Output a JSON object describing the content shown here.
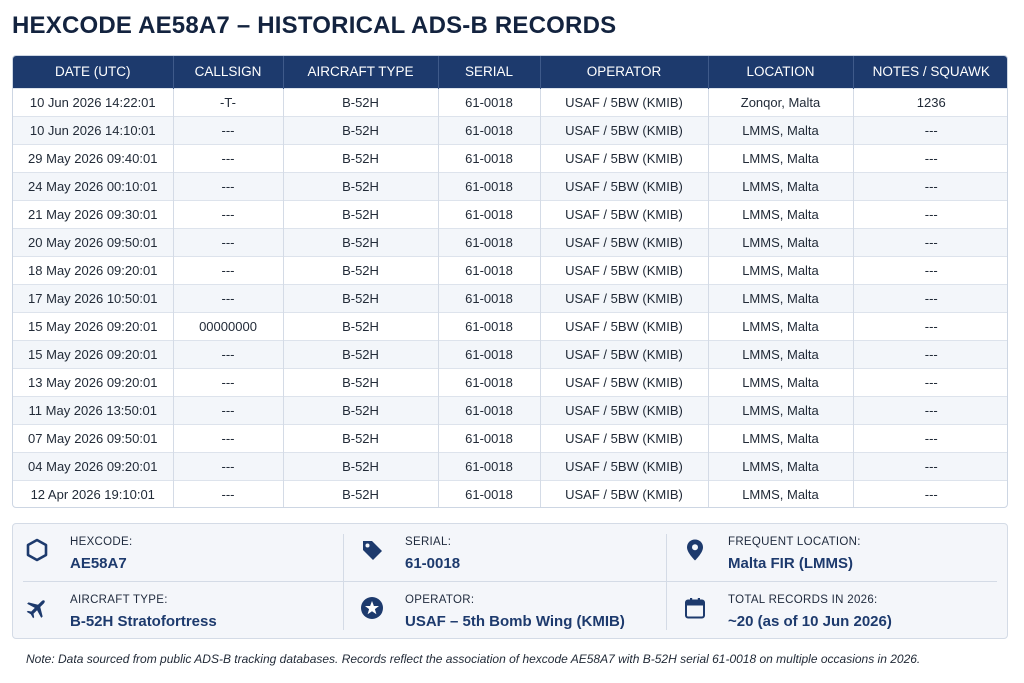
{
  "page": {
    "title": "HEXCODE AE58A7 – HISTORICAL ADS-B RECORDS"
  },
  "table": {
    "columns": [
      "DATE (UTC)",
      "CALLSIGN",
      "AIRCRAFT TYPE",
      "SERIAL",
      "OPERATOR",
      "LOCATION",
      "NOTES / SQUAWK"
    ],
    "rows": [
      [
        "10 Jun 2026 14:22:01",
        "-T-",
        "B-52H",
        "61-0018",
        "USAF / 5BW (KMIB)",
        "Zonqor, Malta",
        "1236"
      ],
      [
        "10 Jun 2026 14:10:01",
        "---",
        "B-52H",
        "61-0018",
        "USAF / 5BW (KMIB)",
        "LMMS, Malta",
        "---"
      ],
      [
        "29 May 2026 09:40:01",
        "---",
        "B-52H",
        "61-0018",
        "USAF / 5BW (KMIB)",
        "LMMS, Malta",
        "---"
      ],
      [
        "24 May 2026 00:10:01",
        "---",
        "B-52H",
        "61-0018",
        "USAF / 5BW (KMIB)",
        "LMMS, Malta",
        "---"
      ],
      [
        "21 May 2026 09:30:01",
        "---",
        "B-52H",
        "61-0018",
        "USAF / 5BW (KMIB)",
        "LMMS, Malta",
        "---"
      ],
      [
        "20 May 2026 09:50:01",
        "---",
        "B-52H",
        "61-0018",
        "USAF / 5BW (KMIB)",
        "LMMS, Malta",
        "---"
      ],
      [
        "18 May 2026 09:20:01",
        "---",
        "B-52H",
        "61-0018",
        "USAF / 5BW (KMIB)",
        "LMMS, Malta",
        "---"
      ],
      [
        "17 May 2026 10:50:01",
        "---",
        "B-52H",
        "61-0018",
        "USAF / 5BW (KMIB)",
        "LMMS, Malta",
        "---"
      ],
      [
        "15 May 2026 09:20:01",
        "00000000",
        "B-52H",
        "61-0018",
        "USAF / 5BW (KMIB)",
        "LMMS, Malta",
        "---"
      ],
      [
        "15 May 2026 09:20:01",
        "---",
        "B-52H",
        "61-0018",
        "USAF / 5BW (KMIB)",
        "LMMS, Malta",
        "---"
      ],
      [
        "13 May 2026 09:20:01",
        "---",
        "B-52H",
        "61-0018",
        "USAF / 5BW (KMIB)",
        "LMMS, Malta",
        "---"
      ],
      [
        "11 May 2026 13:50:01",
        "---",
        "B-52H",
        "61-0018",
        "USAF / 5BW (KMIB)",
        "LMMS, Malta",
        "---"
      ],
      [
        "07 May 2026 09:50:01",
        "---",
        "B-52H",
        "61-0018",
        "USAF / 5BW (KMIB)",
        "LMMS, Malta",
        "---"
      ],
      [
        "04 May 2026 09:20:01",
        "---",
        "B-52H",
        "61-0018",
        "USAF / 5BW (KMIB)",
        "LMMS, Malta",
        "---"
      ],
      [
        "12 Apr 2026 19:10:01",
        "---",
        "B-52H",
        "61-0018",
        "USAF / 5BW (KMIB)",
        "LMMS, Malta",
        "---"
      ]
    ]
  },
  "summary": {
    "hexcode": {
      "label": "HEXCODE:",
      "value": "AE58A7",
      "icon": "hexagon-icon"
    },
    "serial": {
      "label": "SERIAL:",
      "value": "61-0018",
      "icon": "tag-icon"
    },
    "frequent_location": {
      "label": "FREQUENT LOCATION:",
      "value": "Malta FIR (LMMS)",
      "icon": "map-pin-icon"
    },
    "aircraft_type": {
      "label": "AIRCRAFT TYPE:",
      "value": "B-52H Stratofortress",
      "icon": "airplane-icon"
    },
    "operator": {
      "label": "OPERATOR:",
      "value": "USAF – 5th Bomb Wing (KMIB)",
      "icon": "star-badge-icon"
    },
    "total_records": {
      "label": "TOTAL RECORDS IN 2026:",
      "value": "~20 (as of 10 Jun 2026)",
      "icon": "calendar-icon"
    }
  },
  "colors": {
    "header_bg": "#1d3a6d",
    "accent": "#1d3a6d",
    "title": "#13233f"
  },
  "footnote": "Note: Data sourced from public ADS-B tracking databases. Records reflect the association of hexcode AE58A7 with B-52H serial 61-0018 on multiple occasions in 2026."
}
